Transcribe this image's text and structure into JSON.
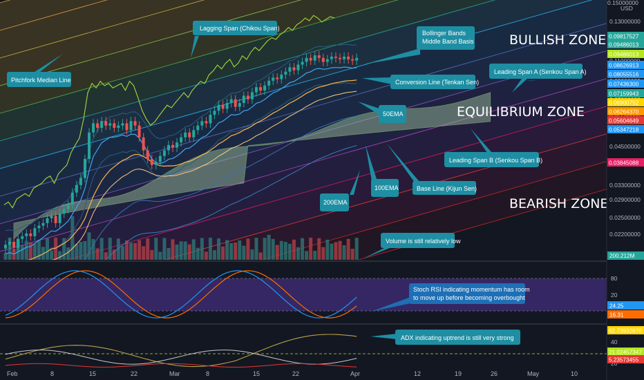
{
  "currency": "USD",
  "top_price_label": "0.15000000",
  "zones": [
    {
      "text": "BULLISH ZONE"
    },
    {
      "text": "EQUILIBRIUM ZONE"
    },
    {
      "text": "BEARISH ZONE"
    }
  ],
  "callouts": [
    {
      "text": "Lagging Span (Chikou Span)"
    },
    {
      "text": "Pitchfork Median Line"
    },
    {
      "text": "Bollinger Bands"
    },
    {
      "text": "Middle Band Basis"
    },
    {
      "text": "Conversion Line (Tenkan Sen)"
    },
    {
      "text": "Leading Span A (Senkou Span A)"
    },
    {
      "text": "50EMA"
    },
    {
      "text": "Leading Span B (Senkou Span B)"
    },
    {
      "text": "100EMA"
    },
    {
      "text": "Base Line (Kijun Sen)"
    },
    {
      "text": "200EMA"
    },
    {
      "text": "Volume is still relatively low"
    },
    {
      "text": "Stoch RSI indicating momentum has room"
    },
    {
      "text": "to move up before becoming overbought"
    },
    {
      "text": "ADX indicating uptrend is still very strong"
    }
  ],
  "chart_data": {
    "type": "candlestick",
    "price_axis": {
      "ticks": [
        "0.13000000",
        "0.11000000",
        "0.09000000",
        "0.07000000",
        "0.05500000",
        "0.04500000",
        "0.03300000",
        "0.02900000",
        "0.02500000",
        "0.02200000"
      ],
      "scale": "log"
    },
    "price_badges": [
      {
        "value": "0.09817527",
        "color": "#26a69a"
      },
      {
        "value": "0.09486013",
        "color": "#26a69a"
      },
      {
        "value": "0.09486013",
        "color": "#b5e61d"
      },
      {
        "value": "0.08626913",
        "color": "#2196f3"
      },
      {
        "value": "0.08055516",
        "color": "#2196f3"
      },
      {
        "value": "0.07436300",
        "color": "#2196f3"
      },
      {
        "value": "0.07159943",
        "color": "#26a69a"
      },
      {
        "value": "0.06900752",
        "color": "#ffd600"
      },
      {
        "value": "0.06264370",
        "color": "#ff9800"
      },
      {
        "value": "0.05604649",
        "color": "#e53935"
      },
      {
        "value": "0.05347218",
        "color": "#2196f3"
      },
      {
        "value": "0.03845088",
        "color": "#e91e63"
      }
    ],
    "x_axis": {
      "labels": [
        "Feb",
        "8",
        "15",
        "22",
        "Mar",
        "8",
        "15",
        "22",
        "Apr",
        "12",
        "19",
        "26",
        "May",
        "10"
      ]
    },
    "volume": {
      "badge": "200.212M"
    },
    "candles_close": [
      0.021,
      0.0215,
      0.0205,
      0.022,
      0.0225,
      0.023,
      0.0225,
      0.024,
      0.0245,
      0.025,
      0.026,
      0.0265,
      0.025,
      0.027,
      0.028,
      0.029,
      0.032,
      0.034,
      0.036,
      0.042,
      0.052,
      0.056,
      0.054,
      0.057,
      0.055,
      0.056,
      0.054,
      0.055,
      0.056,
      0.053,
      0.057,
      0.055,
      0.05,
      0.045,
      0.042,
      0.04,
      0.041,
      0.043,
      0.045,
      0.047,
      0.046,
      0.048,
      0.05,
      0.052,
      0.05,
      0.053,
      0.055,
      0.057,
      0.056,
      0.06,
      0.062,
      0.065,
      0.063,
      0.066,
      0.068,
      0.064,
      0.066,
      0.07,
      0.068,
      0.072,
      0.075,
      0.073,
      0.076,
      0.079,
      0.081,
      0.08,
      0.083,
      0.085,
      0.088,
      0.086,
      0.09,
      0.092,
      0.095,
      0.093,
      0.097,
      0.095,
      0.092,
      0.094,
      0.096,
      0.095,
      0.094,
      0.096,
      0.094,
      0.093,
      0.095
    ],
    "stoch_rsi": {
      "ticks": [
        "80",
        "20"
      ],
      "k_value": "24.25",
      "d_value": "16.31"
    },
    "adx": {
      "ticks": [
        "40",
        "20"
      ],
      "adx_value": "62.73932870",
      "plus_di": "21.02457347",
      "minus_di": "5.23573455"
    }
  }
}
